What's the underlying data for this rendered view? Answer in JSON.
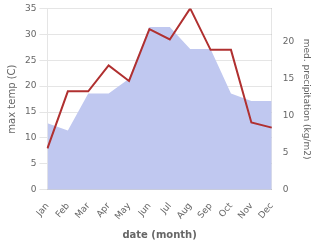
{
  "chart_data": {
    "type": "line",
    "xlabel": "date (month)",
    "ylabel": "max temp (C)",
    "y2label": "med. precipitation (kg/m2)",
    "categories": [
      "Jan",
      "Feb",
      "Mar",
      "Apr",
      "May",
      "Jun",
      "Jul",
      "Aug",
      "Sep",
      "Oct",
      "Nov",
      "Dec"
    ],
    "series": [
      {
        "type": "area",
        "color": "#c0c8f0",
        "axis": "y2",
        "values": [
          9,
          8,
          13,
          13,
          15,
          22,
          22,
          19,
          19,
          13,
          12,
          12
        ]
      },
      {
        "type": "line",
        "color": "#b03030",
        "values": [
          8,
          19,
          19,
          24,
          21,
          31,
          29,
          35,
          27,
          27,
          13,
          12
        ]
      }
    ],
    "ylim": [
      0,
      35
    ],
    "yticks": [
      0,
      5,
      10,
      15,
      20,
      25,
      30,
      35
    ],
    "y2lim": [
      0,
      24.5
    ],
    "y2ticks": [
      0,
      5,
      10,
      15,
      20
    ],
    "grid": true
  }
}
